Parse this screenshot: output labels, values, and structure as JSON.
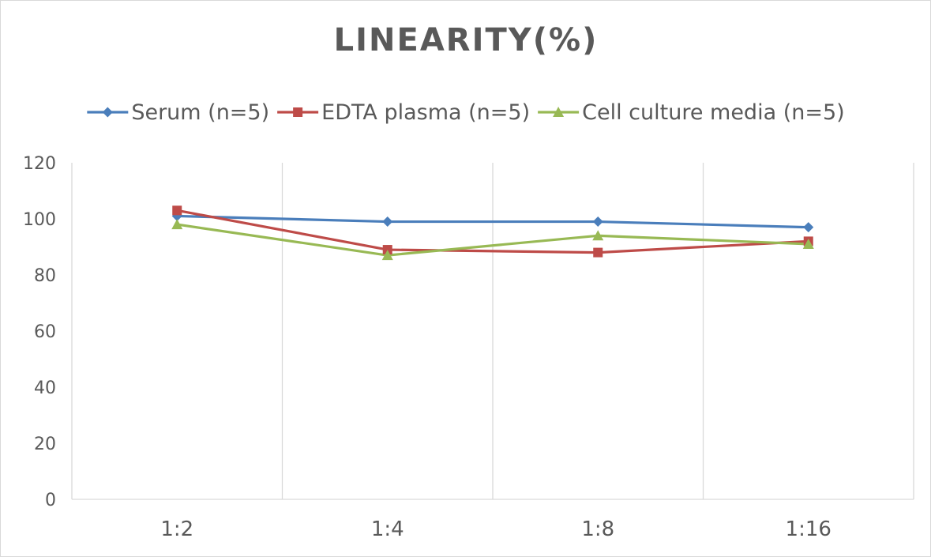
{
  "chart_data": {
    "type": "line",
    "title": "LINEARITY(%)",
    "xlabel": "",
    "ylabel": "",
    "categories": [
      "1:2",
      "1:4",
      "1:8",
      "1:16"
    ],
    "ylim": [
      0,
      120
    ],
    "yticks": [
      0,
      20,
      40,
      60,
      80,
      100,
      120
    ],
    "grid": "vertical",
    "legend_position": "top",
    "series": [
      {
        "name": "Serum (n=5)",
        "values": [
          101,
          99,
          99,
          97
        ],
        "color": "#4a7ebb",
        "marker": "diamond"
      },
      {
        "name": "EDTA plasma (n=5)",
        "values": [
          103,
          89,
          88,
          92
        ],
        "color": "#be4b48",
        "marker": "square"
      },
      {
        "name": "Cell culture media (n=5)",
        "values": [
          98,
          87,
          94,
          91
        ],
        "color": "#98b954",
        "marker": "triangle"
      }
    ]
  },
  "colors": {
    "gridline": "#d9d9d9",
    "axis_text": "#595959",
    "border": "#d9d9d9"
  }
}
